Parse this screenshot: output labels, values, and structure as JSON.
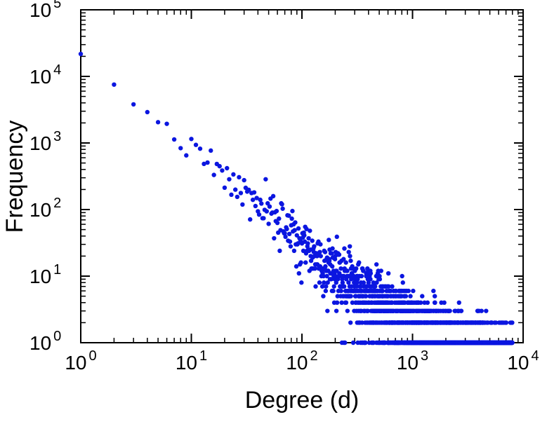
{
  "chart_data": {
    "type": "scatter",
    "title": "",
    "xlabel": "Degree (d)",
    "ylabel": "Frequency",
    "x_scale": "log",
    "y_scale": "log",
    "xlim": [
      1,
      10000
    ],
    "ylim": [
      1,
      100000
    ],
    "xlim_exponents": [
      0,
      4
    ],
    "ylim_exponents": [
      0,
      5
    ],
    "tick_base": "10",
    "x_tick_exponents": [
      0,
      1,
      2,
      3,
      4
    ],
    "y_tick_exponents": [
      0,
      1,
      2,
      3,
      4,
      5
    ],
    "grid": false,
    "legend": null,
    "frame_color": "#000000",
    "text_color": "#000000",
    "marker": {
      "color": "#0b16e0",
      "radius": 3.2
    },
    "distribution": {
      "model": "power_law",
      "description": "frequency ~ coefficient * degree^exponent with integer (Poisson) counts",
      "coefficient": 20000,
      "exponent": -1.4,
      "noise_sigma_max": 0.45,
      "min_degree": 1,
      "max_degree": 8000,
      "seed": 7
    },
    "anchor_points": [
      {
        "degree": 1,
        "frequency": 20000
      },
      {
        "degree": 2,
        "frequency": 7500
      },
      {
        "degree": 10,
        "frequency": 800
      },
      {
        "degree": 100,
        "frequency": 32
      },
      {
        "degree": 300,
        "frequency": 7
      },
      {
        "degree": 1000,
        "frequency": 1
      }
    ]
  }
}
